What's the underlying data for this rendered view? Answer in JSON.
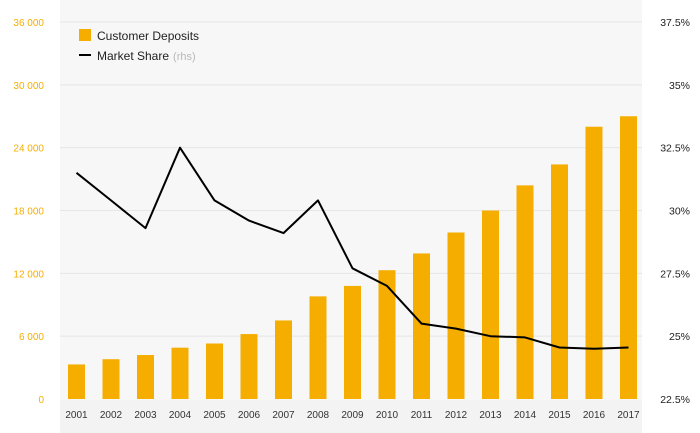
{
  "chart_data": {
    "type": "bar",
    "categories": [
      "2001",
      "2002",
      "2003",
      "2004",
      "2005",
      "2006",
      "2007",
      "2008",
      "2009",
      "2010",
      "2011",
      "2012",
      "2013",
      "2014",
      "2015",
      "2016",
      "2017"
    ],
    "series": [
      {
        "name": "Customer Deposits",
        "type": "bar",
        "axis": "left",
        "color": "#f5ae00",
        "values": [
          3300,
          3800,
          4200,
          4900,
          5300,
          6200,
          7500,
          9800,
          10800,
          12300,
          13900,
          15900,
          18000,
          20400,
          22400,
          26000,
          27000
        ]
      },
      {
        "name": "Market Share",
        "name_suffix": "(rhs)",
        "type": "line",
        "axis": "right",
        "color": "#000000",
        "values": [
          31.5,
          30.4,
          29.3,
          32.5,
          30.4,
          29.6,
          29.1,
          30.4,
          27.7,
          27.0,
          25.5,
          25.3,
          25.0,
          24.95,
          24.55,
          24.5,
          24.55
        ]
      }
    ],
    "yleft": {
      "ylim": [
        0,
        36000
      ],
      "ticks": [
        0,
        6000,
        12000,
        18000,
        24000,
        30000,
        36000
      ],
      "tick_labels": [
        "0",
        "6 000",
        "12 000",
        "18 000",
        "24 000",
        "30 000",
        "36 000"
      ]
    },
    "yright": {
      "ylim": [
        22.5,
        37.5
      ],
      "ticks": [
        22.5,
        25,
        27.5,
        30,
        32.5,
        35,
        37.5
      ],
      "tick_labels": [
        "22.5%",
        "25%",
        "27.5%",
        "30%",
        "32.5%",
        "35%",
        "37.5%"
      ]
    },
    "grid": true,
    "legend_position": "top-left",
    "title": "",
    "xlabel": "",
    "ylabel": ""
  },
  "colors": {
    "bar": "#f5ae00",
    "line": "#000000",
    "grid": "#e6e6e6",
    "plot_bg": "#f7f7f7"
  }
}
